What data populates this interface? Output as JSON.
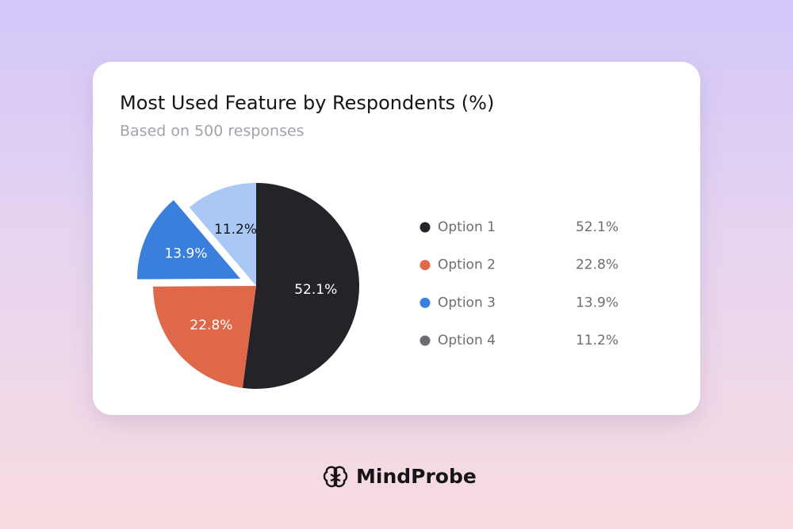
{
  "chart_data": {
    "type": "pie",
    "title": "Most Used Feature by Respondents (%)",
    "subtitle": "Based on 500 responses",
    "categories": [
      "Option 1",
      "Option 2",
      "Option 3",
      "Option 4"
    ],
    "values": [
      52.1,
      22.8,
      13.9,
      11.2
    ],
    "value_labels": [
      "52.1%",
      "22.8%",
      "13.9%",
      "11.2%"
    ],
    "colors": [
      "#242328",
      "#e0684a",
      "#3a7fdc",
      "#a9c8f5"
    ],
    "legend_colors": [
      "#242328",
      "#e0684a",
      "#3a7fdc",
      "#6d6c72"
    ],
    "explode": [
      false,
      false,
      true,
      false
    ]
  },
  "brand": "MindProbe"
}
